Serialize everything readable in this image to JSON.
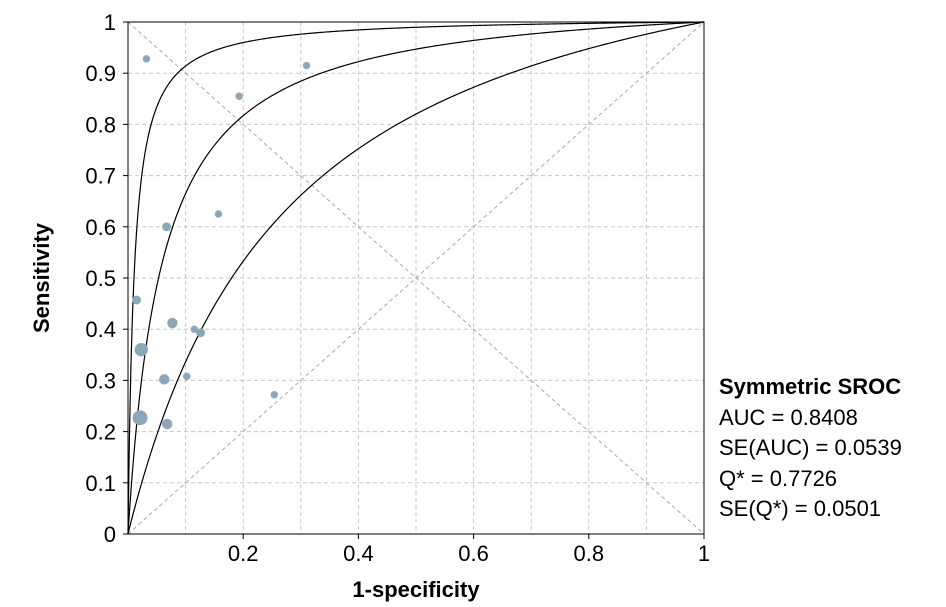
{
  "chart_data": {
    "type": "scatter",
    "title": "",
    "xlabel": "1-specificity",
    "ylabel": "Sensitivity",
    "xlim": [
      0,
      1
    ],
    "ylim": [
      0,
      1
    ],
    "grid": true,
    "x_tick_labels": [
      "0.2",
      "0.4",
      "0.6",
      "0.8",
      "1"
    ],
    "x_tick_values": [
      0.2,
      0.4,
      0.6,
      0.8,
      1
    ],
    "y_tick_labels": [
      "0",
      "0.1",
      "0.2",
      "0.3",
      "0.4",
      "0.5",
      "0.6",
      "0.7",
      "0.8",
      "0.9",
      "1"
    ],
    "y_tick_values": [
      0,
      0.1,
      0.2,
      0.3,
      0.4,
      0.5,
      0.6,
      0.7,
      0.8,
      0.9,
      1
    ],
    "point_color": "#8aa8b8",
    "curve_color": "#000000",
    "points": [
      {
        "x": 0.032,
        "y": 0.928,
        "weight": 2
      },
      {
        "x": 0.31,
        "y": 0.915,
        "weight": 2
      },
      {
        "x": 0.193,
        "y": 0.855,
        "weight": 2
      },
      {
        "x": 0.157,
        "y": 0.625,
        "weight": 2
      },
      {
        "x": 0.067,
        "y": 0.6,
        "weight": 3
      },
      {
        "x": 0.015,
        "y": 0.457,
        "weight": 3
      },
      {
        "x": 0.077,
        "y": 0.412,
        "weight": 4
      },
      {
        "x": 0.115,
        "y": 0.4,
        "weight": 2
      },
      {
        "x": 0.126,
        "y": 0.393,
        "weight": 3
      },
      {
        "x": 0.023,
        "y": 0.36,
        "weight": 6
      },
      {
        "x": 0.063,
        "y": 0.302,
        "weight": 4
      },
      {
        "x": 0.102,
        "y": 0.308,
        "weight": 2
      },
      {
        "x": 0.254,
        "y": 0.272,
        "weight": 2
      },
      {
        "x": 0.021,
        "y": 0.227,
        "weight": 7
      },
      {
        "x": 0.068,
        "y": 0.215,
        "weight": 4
      }
    ],
    "sroc_curves_dor": [
      95.66,
      17.86,
      4.56
    ]
  },
  "stats": {
    "heading": "Symmetric SROC",
    "auc": "AUC = 0.8408",
    "se_auc": "SE(AUC) = 0.0539",
    "q_star": "Q* = 0.7726",
    "se_q": "SE(Q*) = 0.0501"
  }
}
